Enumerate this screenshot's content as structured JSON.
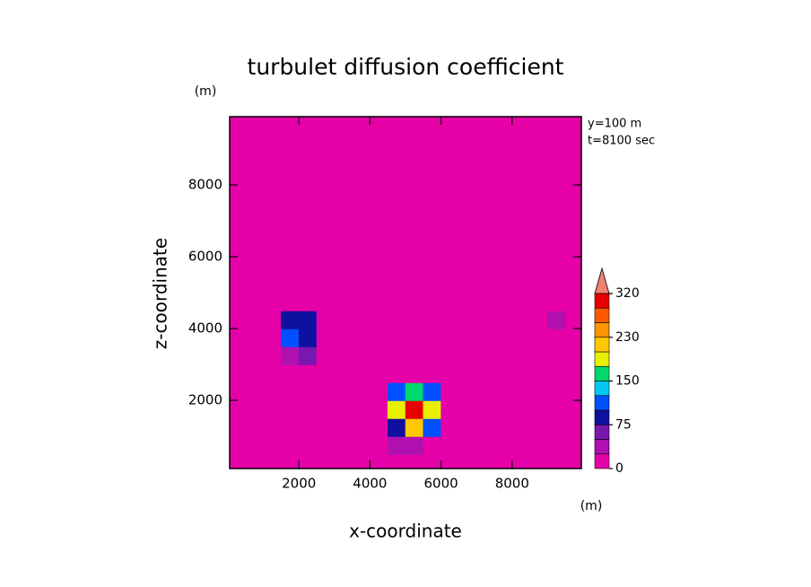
{
  "chart_data": {
    "type": "contour",
    "title": "turbulet diffusion coefficient",
    "x_label": "x-coordinate",
    "y_label": "z-coordinate",
    "x_unit": "(m)",
    "y_unit": "(m)",
    "annotations": [
      "y=100 m",
      "t=8100 sec"
    ],
    "xlim": [
      50,
      9950
    ],
    "ylim": [
      100,
      9900
    ],
    "xticks": [
      2000,
      4000,
      6000,
      8000
    ],
    "yticks": [
      2000,
      4000,
      6000,
      8000
    ],
    "x": [
      250,
      750,
      1250,
      1750,
      2250,
      2750,
      3250,
      3750,
      4250,
      4750,
      5250,
      5750,
      6250,
      6750,
      7250,
      7750,
      8250,
      8750,
      9250,
      9750
    ],
    "y": [
      250,
      750,
      1250,
      1750,
      2250,
      2750,
      3250,
      3750,
      4250,
      4750,
      5250,
      5750,
      6250,
      6750,
      7250,
      7750,
      8250,
      8750,
      9250,
      9750
    ],
    "z": [
      [
        0,
        0,
        0,
        0,
        0,
        0,
        0,
        0,
        0,
        0,
        0,
        0,
        0,
        0,
        0,
        0,
        0,
        0,
        0,
        0
      ],
      [
        0,
        0,
        0,
        0,
        0,
        0,
        0,
        0,
        0,
        30,
        40,
        20,
        0,
        0,
        0,
        0,
        0,
        0,
        0,
        0
      ],
      [
        0,
        0,
        0,
        0,
        0,
        0,
        0,
        0,
        0,
        90,
        200,
        110,
        0,
        0,
        0,
        0,
        0,
        0,
        0,
        0
      ],
      [
        0,
        0,
        0,
        0,
        0,
        0,
        0,
        0,
        0,
        180,
        300,
        190,
        0,
        0,
        0,
        0,
        0,
        0,
        0,
        0
      ],
      [
        0,
        0,
        0,
        0,
        0,
        0,
        0,
        0,
        0,
        110,
        170,
        120,
        0,
        0,
        0,
        0,
        0,
        0,
        0,
        0
      ],
      [
        0,
        0,
        0,
        0,
        0,
        0,
        0,
        0,
        0,
        0,
        0,
        0,
        0,
        0,
        0,
        0,
        0,
        0,
        0,
        0
      ],
      [
        0,
        0,
        20,
        30,
        50,
        0,
        0,
        0,
        0,
        0,
        0,
        0,
        0,
        0,
        0,
        0,
        0,
        0,
        0,
        0
      ],
      [
        0,
        0,
        0,
        110,
        85,
        0,
        0,
        0,
        0,
        0,
        0,
        0,
        0,
        0,
        0,
        0,
        0,
        0,
        0,
        0
      ],
      [
        0,
        0,
        0,
        80,
        90,
        0,
        0,
        0,
        0,
        0,
        0,
        0,
        0,
        0,
        0,
        0,
        0,
        0,
        40,
        0
      ],
      [
        0,
        0,
        0,
        0,
        0,
        0,
        0,
        0,
        0,
        0,
        0,
        0,
        0,
        0,
        0,
        0,
        0,
        0,
        0,
        0
      ],
      [
        0,
        0,
        0,
        0,
        0,
        0,
        0,
        0,
        0,
        0,
        0,
        0,
        0,
        0,
        0,
        0,
        0,
        0,
        0,
        0
      ],
      [
        0,
        0,
        0,
        0,
        0,
        0,
        0,
        0,
        0,
        0,
        0,
        0,
        0,
        0,
        0,
        0,
        0,
        0,
        0,
        0
      ],
      [
        0,
        0,
        0,
        0,
        0,
        0,
        0,
        0,
        0,
        0,
        0,
        0,
        0,
        0,
        0,
        0,
        0,
        0,
        0,
        0
      ],
      [
        0,
        0,
        0,
        0,
        0,
        0,
        0,
        0,
        0,
        0,
        0,
        0,
        0,
        0,
        0,
        0,
        0,
        0,
        0,
        0
      ],
      [
        0,
        0,
        0,
        0,
        0,
        0,
        0,
        0,
        0,
        0,
        0,
        0,
        0,
        0,
        0,
        0,
        0,
        0,
        0,
        0
      ],
      [
        0,
        0,
        0,
        0,
        0,
        0,
        0,
        0,
        0,
        0,
        0,
        0,
        0,
        0,
        0,
        0,
        0,
        0,
        0,
        0
      ],
      [
        0,
        0,
        0,
        0,
        0,
        0,
        0,
        0,
        0,
        0,
        0,
        0,
        0,
        0,
        0,
        0,
        0,
        0,
        0,
        0
      ],
      [
        0,
        0,
        0,
        0,
        0,
        0,
        0,
        0,
        0,
        0,
        0,
        0,
        0,
        0,
        0,
        0,
        0,
        0,
        0,
        0
      ],
      [
        0,
        0,
        0,
        0,
        0,
        0,
        0,
        0,
        0,
        0,
        0,
        0,
        0,
        0,
        0,
        0,
        0,
        0,
        0,
        0
      ],
      [
        0,
        0,
        0,
        0,
        0,
        0,
        0,
        0,
        0,
        0,
        0,
        0,
        0,
        0,
        0,
        0,
        0,
        0,
        0,
        0
      ]
    ],
    "levels": [
      0,
      25,
      50,
      75,
      100,
      125,
      150,
      175,
      200,
      230,
      260,
      290,
      320
    ],
    "colors": [
      "#e600a8",
      "#b010b0",
      "#7818b0",
      "#1010a0",
      "#0050ff",
      "#00c8f0",
      "#00d870",
      "#e8f000",
      "#ffc800",
      "#ff9400",
      "#ff5a00",
      "#e80000"
    ],
    "extend_color": "#f08070",
    "colorbar_ticks": [
      0,
      75,
      150,
      230,
      320
    ]
  }
}
